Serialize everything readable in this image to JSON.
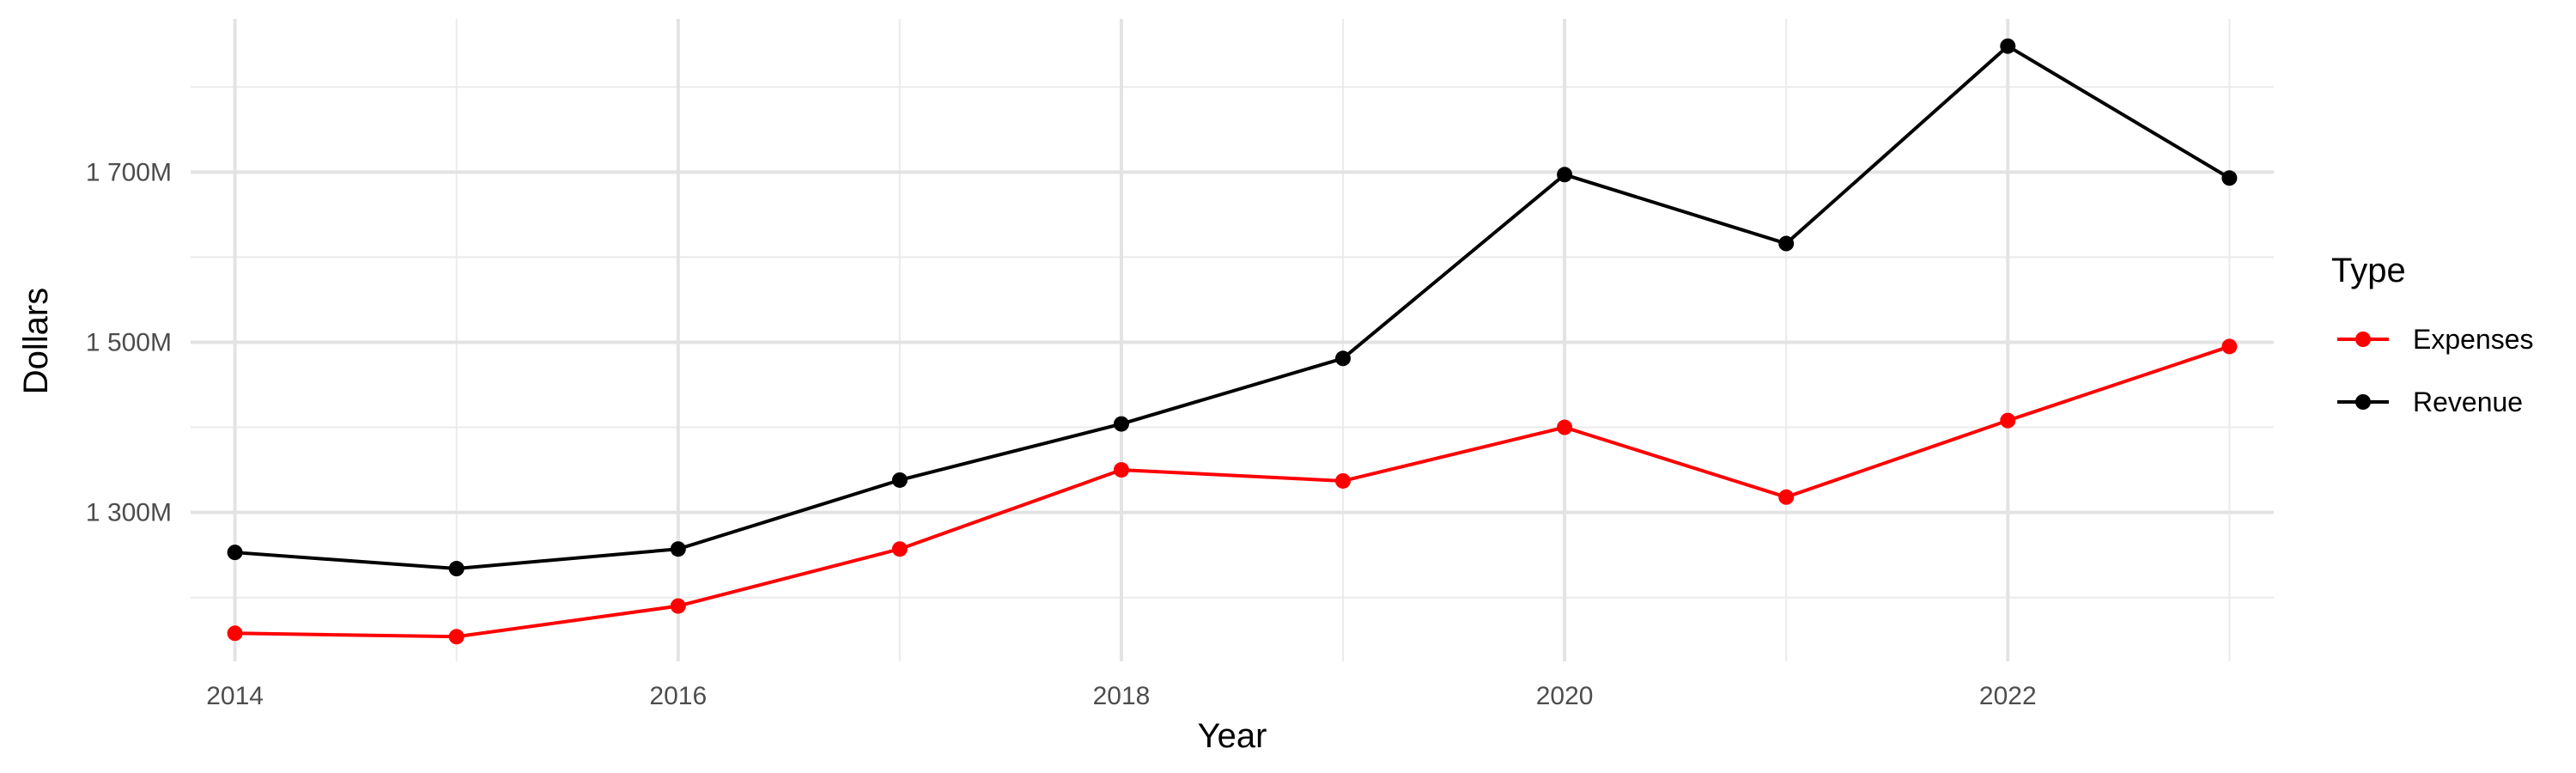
{
  "chart_data": {
    "type": "line",
    "title": "",
    "xlabel": "Year",
    "ylabel": "Dollars",
    "x": [
      2014,
      2015,
      2016,
      2017,
      2018,
      2019,
      2020,
      2021,
      2022,
      2023
    ],
    "x_ticks": [
      2014,
      2016,
      2018,
      2020,
      2022
    ],
    "x_tick_labels": [
      "2014",
      "2016",
      "2018",
      "2020",
      "2022"
    ],
    "xlim": [
      2013.8,
      2023.2
    ],
    "ylim": [
      1125,
      1880
    ],
    "y_ticks": [
      1300,
      1500,
      1700
    ],
    "y_tick_labels": [
      "1 300M",
      "1 500M",
      "1 700M"
    ],
    "y_minor_ticks": [
      1200,
      1400,
      1600,
      1800
    ],
    "grid": true,
    "legend": {
      "title": "Type",
      "position": "right"
    },
    "series": [
      {
        "name": "Expenses",
        "color": "#ff0000",
        "values": [
          1158,
          1154,
          1190,
          1257,
          1350,
          1337,
          1400,
          1318,
          1408,
          1495
        ]
      },
      {
        "name": "Revenue",
        "color": "#000000",
        "values": [
          1253,
          1234,
          1257,
          1338,
          1404,
          1481,
          1697,
          1616,
          1848,
          1693
        ]
      }
    ]
  }
}
